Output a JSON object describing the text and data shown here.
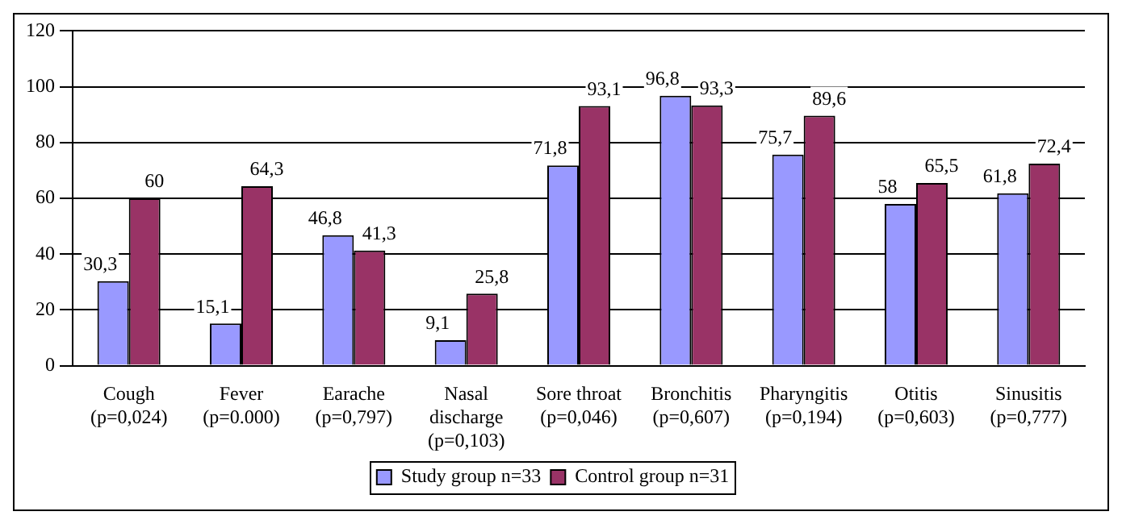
{
  "chart_data": {
    "type": "bar",
    "categories": [
      "Cough\n(p=0,024)",
      "Fever\n(p=0.000)",
      "Earache\n(p=0,797)",
      "Nasal\ndischarge\n(p=0,103)",
      "Sore throat\n(p=0,046)",
      "Bronchitis\n(p=0,607)",
      "Pharyngitis\n(p=0,194)",
      "Otitis\n(p=0,603)",
      "Sinusitis\n(p=0,777)"
    ],
    "series": [
      {
        "name": "Study group n=33",
        "color": "#9999ff",
        "values": [
          30.3,
          15.1,
          46.8,
          9.1,
          71.8,
          96.8,
          75.7,
          58,
          61.8
        ],
        "value_labels": [
          "30,3",
          "15,1",
          "46,8",
          "9,1",
          "71,8",
          "96,8",
          "75,7",
          "58",
          "61,8"
        ]
      },
      {
        "name": "Control group n=31",
        "color": "#993366",
        "values": [
          60,
          64.3,
          41.3,
          25.8,
          93.1,
          93.3,
          89.6,
          65.5,
          72.4
        ],
        "value_labels": [
          "60",
          "64,3",
          "41,3",
          "25,8",
          "93,1",
          "93,3",
          "89,6",
          "65,5",
          "72,4"
        ]
      }
    ],
    "ylim": [
      0,
      120
    ],
    "yticks": [
      0,
      20,
      40,
      60,
      80,
      100,
      120
    ],
    "grid": "y",
    "legend": "bottom"
  }
}
